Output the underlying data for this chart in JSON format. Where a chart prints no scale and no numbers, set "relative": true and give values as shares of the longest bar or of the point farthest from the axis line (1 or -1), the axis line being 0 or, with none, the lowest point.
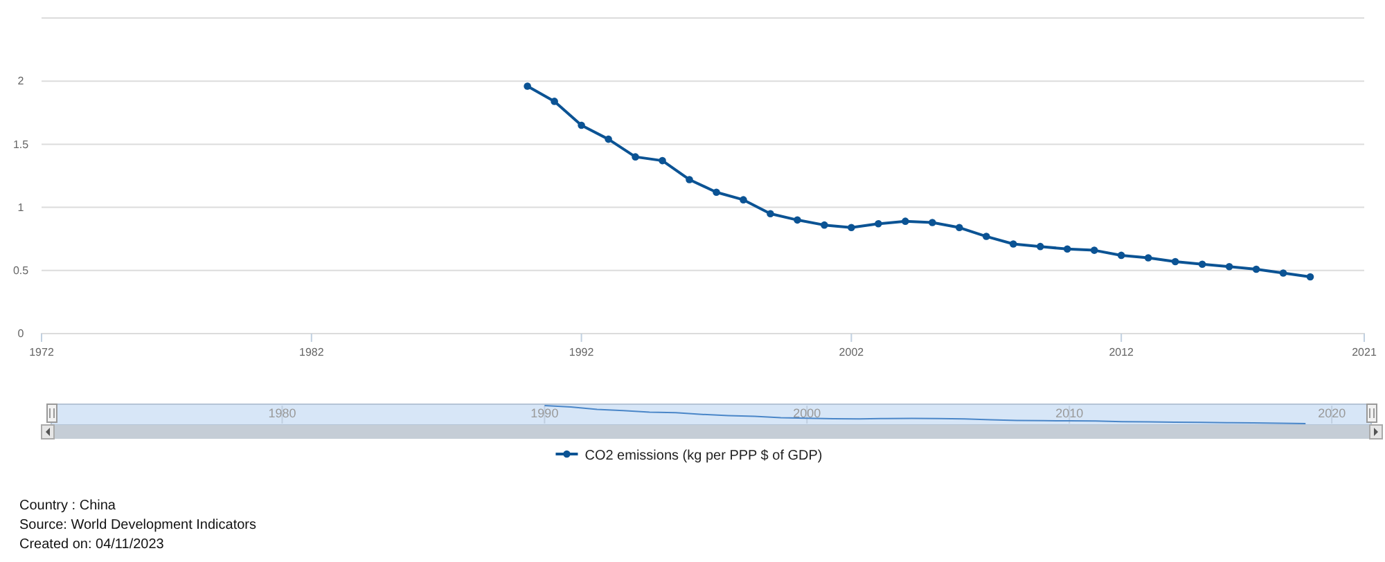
{
  "chart_data": [
    {
      "type": "line",
      "x": [
        1990,
        1991,
        1992,
        1993,
        1994,
        1995,
        1996,
        1997,
        1998,
        1999,
        2000,
        2001,
        2002,
        2003,
        2004,
        2005,
        2006,
        2007,
        2008,
        2009,
        2010,
        2011,
        2012,
        2013,
        2014,
        2015,
        2016,
        2017,
        2018,
        2019
      ],
      "series": [
        {
          "name": "CO2 emissions (kg per PPP $ of GDP)",
          "color": "#0b5394",
          "values": [
            1.96,
            1.84,
            1.65,
            1.54,
            1.4,
            1.37,
            1.22,
            1.12,
            1.06,
            0.95,
            0.9,
            0.86,
            0.84,
            0.87,
            0.89,
            0.88,
            0.84,
            0.77,
            0.71,
            0.69,
            0.67,
            0.66,
            0.62,
            0.6,
            0.57,
            0.55,
            0.53,
            0.51,
            0.48,
            0.45
          ]
        }
      ],
      "xlim": [
        1972,
        2021
      ],
      "xticks": [
        1972,
        1982,
        1992,
        2002,
        2012,
        2021
      ],
      "ylim": [
        0,
        2.5
      ],
      "yticks": [
        0,
        0.5,
        1,
        1.5,
        2,
        {
          "value": 2.5,
          "label": null
        }
      ],
      "grid": "y",
      "marker": "circle",
      "legend": "bottom",
      "annotations": [
        "Country : China",
        "Source: World Development Indicators",
        "Created on: 04/11/2023"
      ]
    },
    {
      "type": "line",
      "relative": true,
      "x": [
        1990,
        1991,
        1992,
        1993,
        1994,
        1995,
        1996,
        1997,
        1998,
        1999,
        2000,
        2001,
        2002,
        2003,
        2004,
        2005,
        2006,
        2007,
        2008,
        2009,
        2010,
        2011,
        2012,
        2013,
        2014,
        2015,
        2016,
        2017,
        2018,
        2019
      ],
      "series": [
        {
          "color": "#4a86c8",
          "values": [
            1.0,
            0.92,
            0.79,
            0.72,
            0.63,
            0.61,
            0.51,
            0.44,
            0.4,
            0.33,
            0.3,
            0.27,
            0.26,
            0.28,
            0.29,
            0.28,
            0.26,
            0.21,
            0.17,
            0.16,
            0.15,
            0.14,
            0.11,
            0.1,
            0.08,
            0.07,
            0.05,
            0.04,
            0.02,
            0.0
          ]
        }
      ],
      "xlim": [
        1971.2,
        2021.5
      ],
      "xticks": [
        1980,
        1990,
        2000,
        2010,
        2020
      ],
      "marker": "none",
      "tick_labels": "x"
    }
  ]
}
